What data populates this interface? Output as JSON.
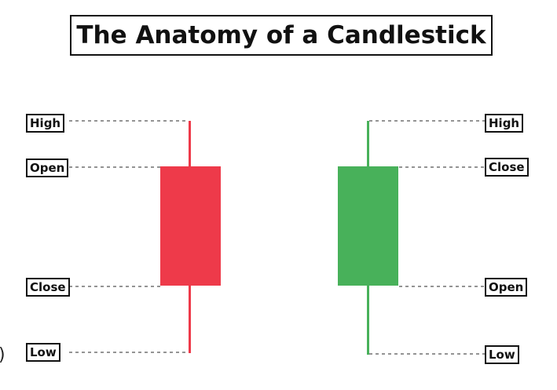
{
  "title": "The Anatomy of a Candlestick",
  "colors": {
    "bearish": "#ee3a4a",
    "bullish": "#48b15a",
    "guide": "#555555",
    "border": "#111111"
  },
  "bearish_candle": {
    "labels": {
      "high": "High",
      "open": "Open",
      "close": "Close",
      "low": "Low"
    }
  },
  "bullish_candle": {
    "labels": {
      "high": "High",
      "close": "Close",
      "open": "Open",
      "low": "Low"
    }
  },
  "edge_mark": ")"
}
